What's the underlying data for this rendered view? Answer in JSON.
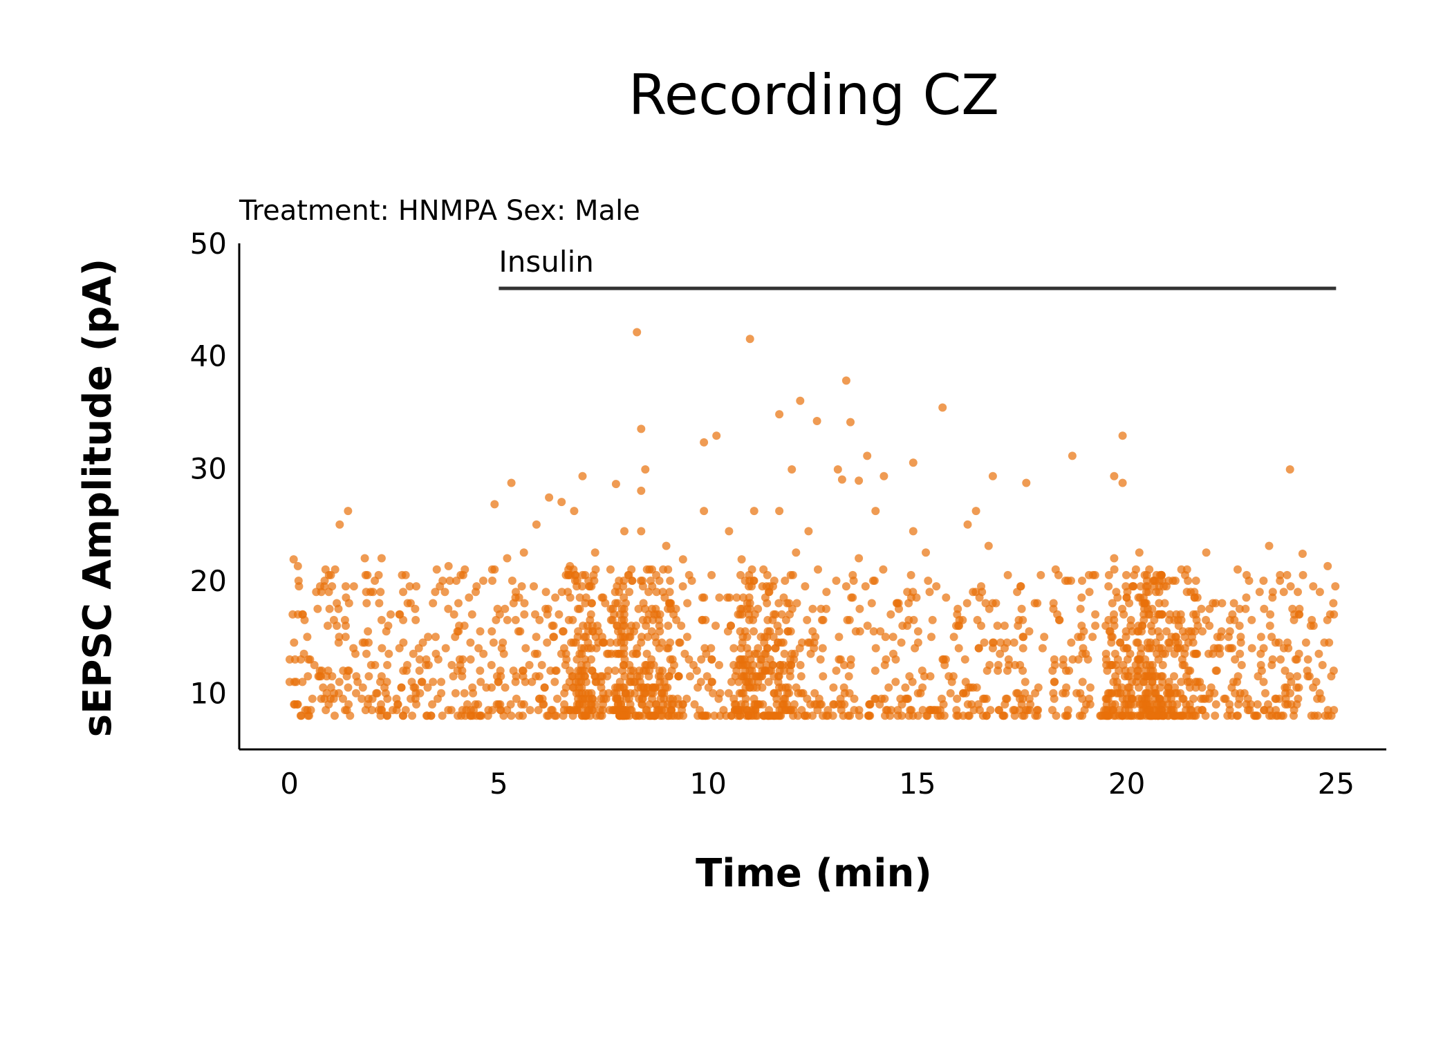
{
  "chart_data": {
    "type": "scatter",
    "title": "Recording CZ",
    "subtitle": "Treatment: HNMPA  Sex: Male",
    "xlabel": "Time (min)",
    "ylabel": "sEPSC Amplitude (pA)",
    "xlim": [
      -1.2,
      26.2
    ],
    "ylim": [
      5,
      50
    ],
    "xticks": [
      "0",
      "5",
      "10",
      "15",
      "20",
      "25"
    ],
    "xtick_values": [
      0,
      5,
      10,
      15,
      20,
      25
    ],
    "yticks": [
      "10",
      "20",
      "30",
      "40",
      "50"
    ],
    "ytick_values": [
      10,
      20,
      30,
      40,
      50
    ],
    "grid": false,
    "legend": "none",
    "point_color": "#e8710a",
    "annotation": {
      "label": "Insulin",
      "x_start": 5,
      "x_end": 25,
      "y": 46
    },
    "series": [
      {
        "points": [
          [
            8.3,
            42.1
          ],
          [
            11.0,
            41.5
          ],
          [
            13.3,
            37.8
          ],
          [
            12.2,
            36.0
          ],
          [
            15.6,
            35.4
          ],
          [
            11.7,
            34.8
          ],
          [
            12.6,
            34.2
          ],
          [
            13.4,
            34.1
          ],
          [
            8.4,
            33.5
          ],
          [
            10.2,
            32.9
          ],
          [
            19.9,
            32.9
          ],
          [
            9.9,
            32.3
          ],
          [
            13.8,
            31.1
          ],
          [
            18.7,
            31.1
          ],
          [
            14.9,
            30.5
          ],
          [
            12.0,
            29.9
          ],
          [
            8.5,
            29.9
          ],
          [
            13.1,
            29.9
          ],
          [
            23.9,
            29.9
          ],
          [
            7.0,
            29.3
          ],
          [
            16.8,
            29.3
          ],
          [
            19.7,
            29.3
          ],
          [
            13.2,
            29.0
          ],
          [
            13.6,
            28.9
          ],
          [
            14.2,
            29.3
          ],
          [
            5.3,
            28.7
          ],
          [
            7.8,
            28.6
          ],
          [
            17.6,
            28.7
          ],
          [
            8.4,
            28.0
          ],
          [
            19.9,
            28.7
          ],
          [
            2.2,
            22.0
          ],
          [
            5.6,
            22.5
          ],
          [
            6.2,
            27.4
          ],
          [
            4.9,
            26.8
          ],
          [
            6.8,
            26.2
          ],
          [
            9.9,
            26.2
          ],
          [
            11.1,
            26.2
          ],
          [
            11.7,
            26.2
          ],
          [
            14.0,
            26.2
          ],
          [
            16.4,
            26.2
          ],
          [
            1.4,
            26.2
          ],
          [
            1.2,
            25.0
          ],
          [
            5.9,
            25.0
          ],
          [
            6.5,
            27.0
          ],
          [
            8.0,
            24.4
          ],
          [
            8.4,
            24.4
          ],
          [
            10.5,
            24.4
          ],
          [
            12.4,
            24.4
          ],
          [
            14.9,
            24.4
          ],
          [
            16.2,
            25.0
          ],
          [
            0.1,
            21.9
          ],
          [
            0.2,
            21.3
          ],
          [
            1.8,
            22.0
          ],
          [
            3.8,
            21.3
          ],
          [
            5.2,
            22.0
          ],
          [
            6.7,
            21.3
          ],
          [
            7.3,
            22.5
          ],
          [
            9.0,
            23.1
          ],
          [
            9.4,
            21.9
          ],
          [
            10.8,
            21.9
          ],
          [
            12.1,
            22.5
          ],
          [
            13.6,
            22.0
          ],
          [
            15.2,
            22.5
          ],
          [
            16.7,
            23.1
          ],
          [
            19.7,
            22.0
          ],
          [
            20.3,
            22.5
          ],
          [
            21.9,
            22.5
          ],
          [
            23.4,
            23.1
          ],
          [
            24.2,
            22.4
          ],
          [
            24.8,
            21.3
          ]
        ],
        "cloud": {
          "x_range": [
            0,
            25
          ],
          "y_range": [
            7.5,
            21
          ],
          "n": 2100,
          "dense_x": [
            8.5,
            11.3,
            7.3,
            20.2,
            21.0
          ],
          "baseline_y": 9.5
        }
      }
    ]
  }
}
